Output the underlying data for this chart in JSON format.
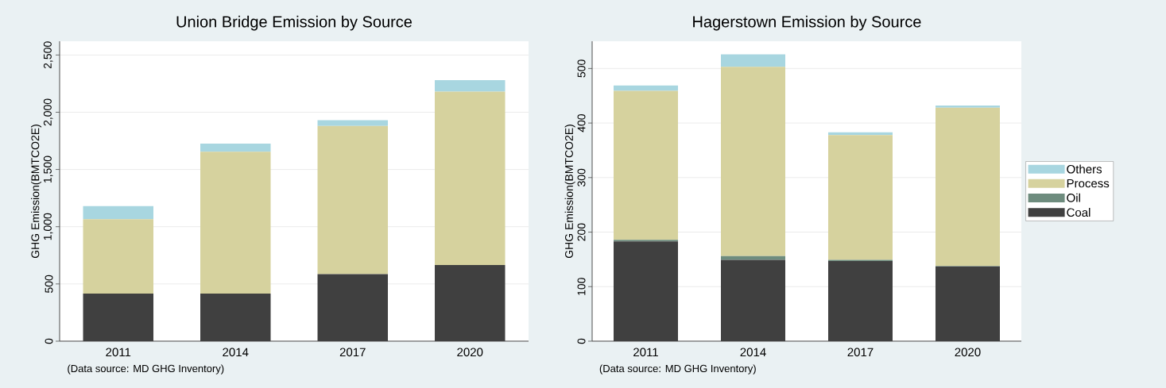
{
  "chart_data": [
    {
      "type": "bar",
      "stacked": true,
      "title": "Union Bridge Emission by Source",
      "ylabel": "GHG Emission(BMTCO2E)",
      "categories": [
        "2011",
        "2014",
        "2017",
        "2020"
      ],
      "series": [
        {
          "color": "#404040",
          "values": [
            415,
            415,
            585,
            665
          ]
        },
        {
          "color": "#d6d29e",
          "values": [
            650,
            1240,
            1295,
            1515
          ]
        },
        {
          "color": "#a8d6e0",
          "values": [
            115,
            70,
            50,
            100
          ]
        }
      ],
      "ylim": [
        0,
        2620
      ],
      "yticks": [
        0,
        500,
        {
          "value": 1000,
          "label": "1,000"
        },
        {
          "value": 1500,
          "label": "1,500"
        },
        {
          "value": 2000,
          "label": "2,000"
        },
        {
          "value": 2500,
          "label": "2,500"
        }
      ],
      "grid": "y",
      "legend": false,
      "annotations": [
        "(Data source: MD GHG Inventory)"
      ]
    },
    {
      "type": "bar",
      "stacked": true,
      "title": "Hagerstown Emission by Source",
      "ylabel": "GHG Emission(BMTCO2E)",
      "categories": [
        "2011",
        "2014",
        "2017",
        "2020"
      ],
      "series": [
        {
          "name": "Coal",
          "color": "#404040",
          "values": [
            183,
            149,
            147,
            137
          ]
        },
        {
          "name": "Oil",
          "color": "#6e8c7e",
          "values": [
            3,
            7,
            2,
            1
          ]
        },
        {
          "name": "Process",
          "color": "#d6d29e",
          "values": [
            273,
            347,
            229,
            290
          ]
        },
        {
          "name": "Others",
          "color": "#a8d6e0",
          "values": [
            10,
            23,
            5,
            4
          ]
        }
      ],
      "ylim": [
        0,
        550
      ],
      "yticks": [
        0,
        100,
        200,
        300,
        400,
        500
      ],
      "grid": "y",
      "legend": "right",
      "annotations": [
        "(Data source: MD GHG Inventory)"
      ]
    }
  ]
}
